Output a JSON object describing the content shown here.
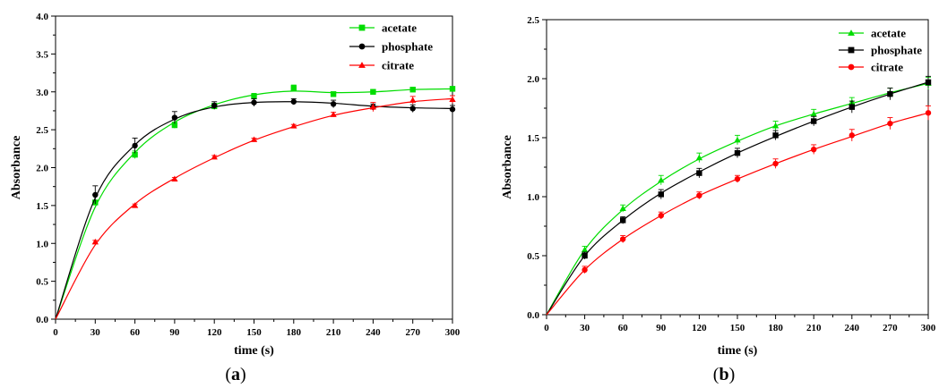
{
  "chart_data": [
    {
      "type": "line",
      "panel_label_open": "(",
      "panel_label_letter": "a",
      "panel_label_close": ")",
      "xlabel": "time (s)",
      "ylabel": "Absorbance",
      "xlim": [
        0,
        300
      ],
      "ylim": [
        0,
        4.0
      ],
      "xticks": [
        "0",
        "30",
        "60",
        "90",
        "120",
        "150",
        "180",
        "210",
        "240",
        "270",
        "300"
      ],
      "yticks": [
        "0.0",
        "0.5",
        "1.0",
        "1.5",
        "2.0",
        "2.5",
        "3.0",
        "3.5",
        "4.0"
      ],
      "legend_position": "top-right",
      "grid": false,
      "x": [
        0,
        30,
        60,
        90,
        120,
        150,
        180,
        210,
        240,
        270,
        300
      ],
      "series": [
        {
          "name": "acetate",
          "color": "#00dd00",
          "marker": "square",
          "values": [
            0,
            1.54,
            2.17,
            2.56,
            2.81,
            2.94,
            3.05,
            2.97,
            3.0,
            3.03,
            3.04
          ],
          "errors": [
            0,
            0.03,
            0.05,
            0.04,
            0.04,
            0.04,
            0.04,
            0.03,
            0.03,
            0.02,
            0.03
          ],
          "fit": [
            0,
            1.48,
            2.2,
            2.6,
            2.83,
            2.96,
            3.01,
            2.99,
            3.0,
            3.03,
            3.04
          ]
        },
        {
          "name": "phosphate",
          "color": "#000000",
          "marker": "circle",
          "values": [
            0,
            1.64,
            2.29,
            2.66,
            2.82,
            2.86,
            2.87,
            2.84,
            2.8,
            2.78,
            2.77
          ],
          "errors": [
            0,
            0.12,
            0.1,
            0.08,
            0.05,
            0.05,
            0.04,
            0.05,
            0.04,
            0.05,
            0.05
          ],
          "fit": [
            0,
            1.6,
            2.3,
            2.64,
            2.8,
            2.86,
            2.87,
            2.85,
            2.81,
            2.79,
            2.78
          ]
        },
        {
          "name": "citrate",
          "color": "#ff0000",
          "marker": "triangle",
          "values": [
            0,
            1.02,
            1.5,
            1.85,
            2.14,
            2.37,
            2.55,
            2.7,
            2.8,
            2.89,
            2.9
          ],
          "errors": [
            0,
            0.02,
            0.02,
            0.02,
            0.02,
            0.02,
            0.02,
            0.03,
            0.06,
            0.05,
            0.05
          ],
          "fit": [
            0,
            0.98,
            1.52,
            1.86,
            2.13,
            2.36,
            2.54,
            2.69,
            2.79,
            2.87,
            2.91
          ]
        }
      ]
    },
    {
      "type": "line",
      "panel_label_open": "(",
      "panel_label_letter": "b",
      "panel_label_close": ")",
      "xlabel": "time (s)",
      "ylabel": "Absorbance",
      "xlim": [
        0,
        300
      ],
      "ylim": [
        0,
        2.5
      ],
      "xticks": [
        "0",
        "30",
        "60",
        "90",
        "120",
        "150",
        "180",
        "210",
        "240",
        "270",
        "300"
      ],
      "yticks": [
        "0.0",
        "0.5",
        "1.0",
        "1.5",
        "2.0",
        "2.5"
      ],
      "legend_position": "top-right",
      "grid": false,
      "x": [
        0,
        30,
        60,
        90,
        120,
        150,
        180,
        210,
        240,
        270,
        300
      ],
      "series": [
        {
          "name": "acetate",
          "color": "#00dd00",
          "marker": "triangle",
          "values": [
            0,
            0.55,
            0.9,
            1.14,
            1.33,
            1.48,
            1.6,
            1.7,
            1.8,
            1.88,
            1.96
          ],
          "errors": [
            0,
            0.03,
            0.03,
            0.04,
            0.04,
            0.04,
            0.04,
            0.04,
            0.04,
            0.04,
            0.05
          ],
          "fit": [
            0,
            0.55,
            0.89,
            1.13,
            1.32,
            1.47,
            1.6,
            1.7,
            1.79,
            1.88,
            1.96
          ]
        },
        {
          "name": "phosphate",
          "color": "#000000",
          "marker": "square",
          "values": [
            0,
            0.5,
            0.8,
            1.02,
            1.2,
            1.37,
            1.52,
            1.64,
            1.76,
            1.87,
            1.97
          ],
          "errors": [
            0,
            0.03,
            0.03,
            0.04,
            0.04,
            0.04,
            0.04,
            0.04,
            0.05,
            0.05,
            0.05
          ],
          "fit": [
            0,
            0.5,
            0.8,
            1.03,
            1.21,
            1.37,
            1.51,
            1.64,
            1.76,
            1.87,
            1.97
          ]
        },
        {
          "name": "citrate",
          "color": "#ff0000",
          "marker": "circle",
          "values": [
            0,
            0.38,
            0.64,
            0.84,
            1.01,
            1.15,
            1.28,
            1.4,
            1.52,
            1.62,
            1.71
          ],
          "errors": [
            0,
            0.03,
            0.03,
            0.03,
            0.03,
            0.03,
            0.04,
            0.04,
            0.05,
            0.05,
            0.06
          ],
          "fit": [
            0,
            0.38,
            0.64,
            0.84,
            1.01,
            1.15,
            1.28,
            1.4,
            1.51,
            1.62,
            1.71
          ]
        }
      ]
    }
  ]
}
